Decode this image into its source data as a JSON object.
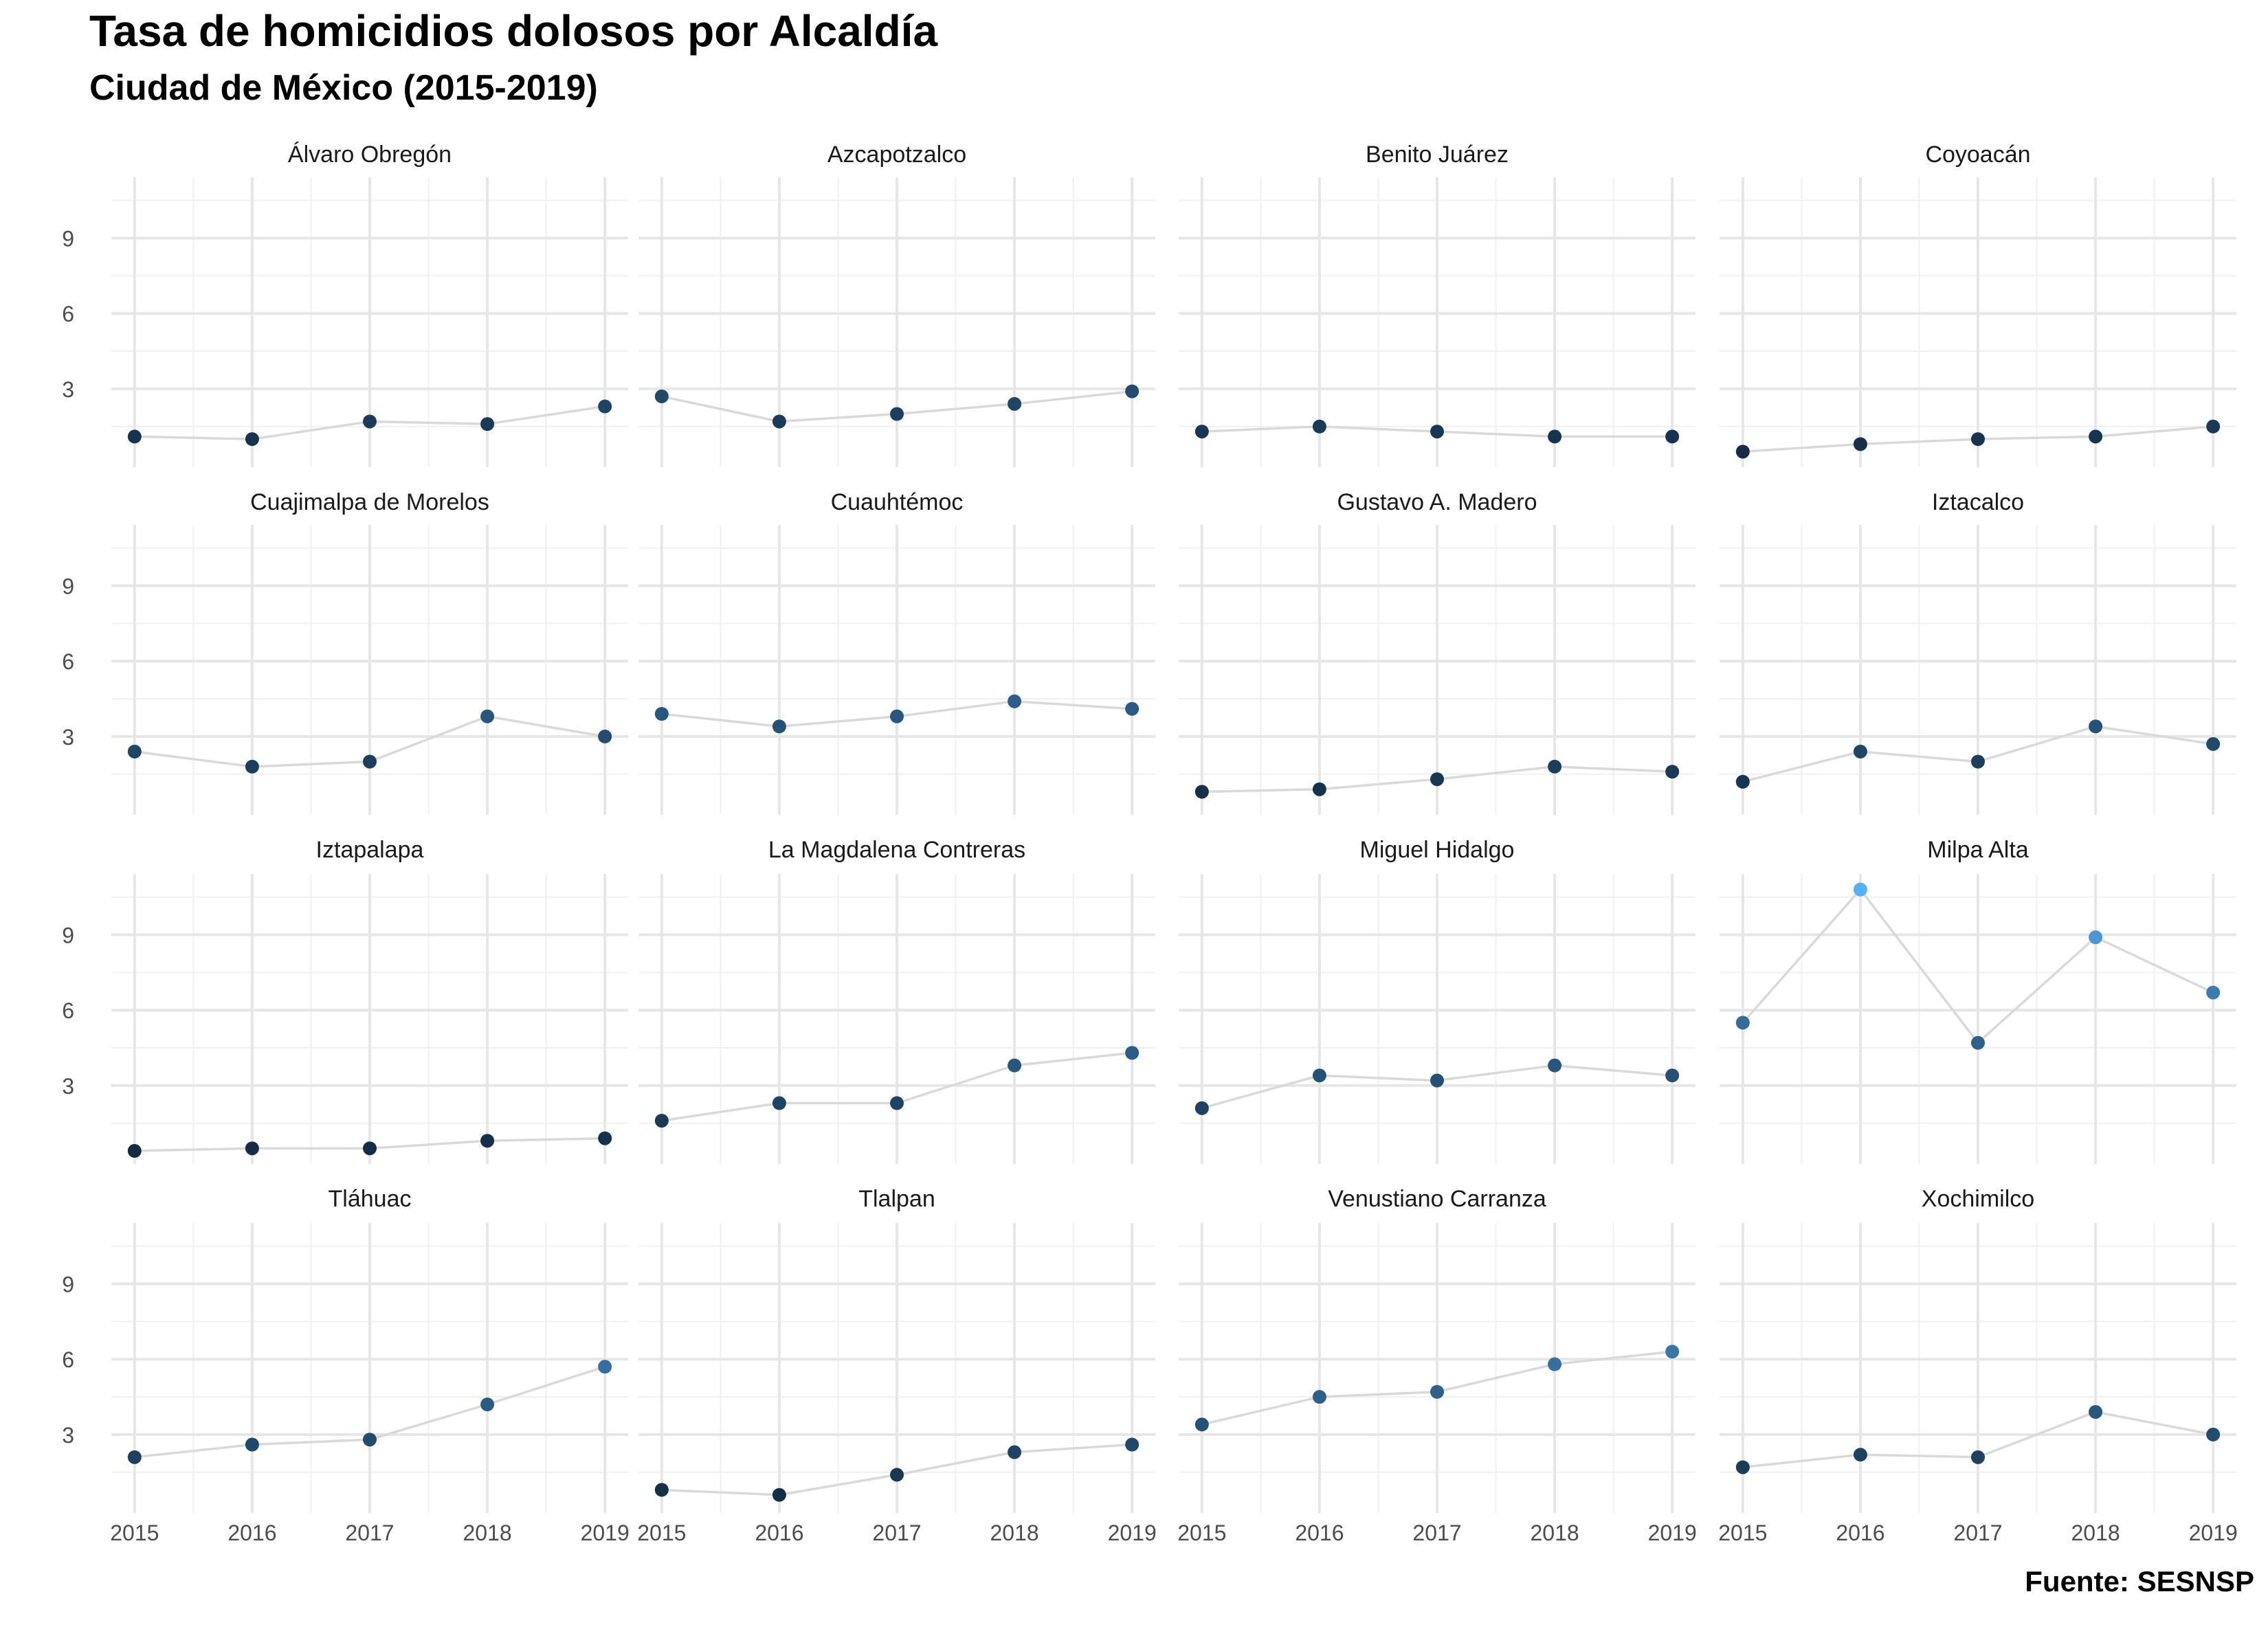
{
  "title": "Tasa de homicidios dolosos por Alcaldía",
  "subtitle": "Ciudad de México (2015-2019)",
  "caption": "Fuente: SESNSP",
  "colors": {
    "point_low": "#132B43",
    "point_high": "#56B1F7",
    "line": "#d9d9d9",
    "grid_major": "#e6e6e6",
    "grid_minor": "#f0f0f0",
    "strip_text": "#1a1a1a",
    "axis_text": "#4d4d4d"
  },
  "chart_data": {
    "type": "line",
    "layout": "facet-grid 4x4",
    "x_ticks": [
      "2015",
      "2016",
      "2017",
      "2018",
      "2019"
    ],
    "y_ticks": [
      "3",
      "6",
      "9"
    ],
    "xlim": [
      2015,
      2019
    ],
    "ylim": [
      0.4,
      10.9
    ],
    "grid": true,
    "legend": "none",
    "facets": [
      {
        "name": "Álvaro Obregón",
        "x": [
          2015,
          2016,
          2017,
          2018,
          2019
        ],
        "values": [
          1.1,
          1.0,
          1.7,
          1.6,
          2.3
        ]
      },
      {
        "name": "Azcapotzalco",
        "x": [
          2015,
          2016,
          2017,
          2018,
          2019
        ],
        "values": [
          2.7,
          1.7,
          2.0,
          2.4,
          2.9
        ]
      },
      {
        "name": "Benito Juárez",
        "x": [
          2015,
          2016,
          2017,
          2018,
          2019
        ],
        "values": [
          1.3,
          1.5,
          1.3,
          1.1,
          1.1
        ]
      },
      {
        "name": "Coyoacán",
        "x": [
          2015,
          2016,
          2017,
          2018,
          2019
        ],
        "values": [
          0.5,
          0.8,
          1.0,
          1.1,
          1.5
        ]
      },
      {
        "name": "Cuajimalpa de Morelos",
        "x": [
          2015,
          2016,
          2017,
          2018,
          2019
        ],
        "values": [
          2.4,
          1.8,
          2.0,
          3.8,
          3.0
        ]
      },
      {
        "name": "Cuauhtémoc",
        "x": [
          2015,
          2016,
          2017,
          2018,
          2019
        ],
        "values": [
          3.9,
          3.4,
          3.8,
          4.4,
          4.1
        ]
      },
      {
        "name": "Gustavo A. Madero",
        "x": [
          2015,
          2016,
          2017,
          2018,
          2019
        ],
        "values": [
          0.8,
          0.9,
          1.3,
          1.8,
          1.6
        ]
      },
      {
        "name": "Iztacalco",
        "x": [
          2015,
          2016,
          2017,
          2018,
          2019
        ],
        "values": [
          1.2,
          2.4,
          2.0,
          3.4,
          2.7
        ]
      },
      {
        "name": "Iztapalapa",
        "x": [
          2015,
          2016,
          2017,
          2018,
          2019
        ],
        "values": [
          0.4,
          0.5,
          0.5,
          0.8,
          0.9
        ]
      },
      {
        "name": "La Magdalena Contreras",
        "x": [
          2015,
          2016,
          2017,
          2018,
          2019
        ],
        "values": [
          1.6,
          2.3,
          2.3,
          3.8,
          4.3
        ]
      },
      {
        "name": "Miguel Hidalgo",
        "x": [
          2015,
          2016,
          2017,
          2018,
          2019
        ],
        "values": [
          2.1,
          3.4,
          3.2,
          3.8,
          3.4
        ]
      },
      {
        "name": "Milpa Alta",
        "x": [
          2015,
          2016,
          2017,
          2018,
          2019
        ],
        "values": [
          5.5,
          10.8,
          4.7,
          8.9,
          6.7
        ]
      },
      {
        "name": "Tláhuac",
        "x": [
          2015,
          2016,
          2017,
          2018,
          2019
        ],
        "values": [
          2.1,
          2.6,
          2.8,
          4.2,
          5.7
        ]
      },
      {
        "name": "Tlalpan",
        "x": [
          2015,
          2016,
          2017,
          2018,
          2019
        ],
        "values": [
          0.8,
          0.6,
          1.4,
          2.3,
          2.6
        ]
      },
      {
        "name": "Venustiano Carranza",
        "x": [
          2015,
          2016,
          2017,
          2018,
          2019
        ],
        "values": [
          3.4,
          4.5,
          4.7,
          5.8,
          6.3
        ]
      },
      {
        "name": "Xochimilco",
        "x": [
          2015,
          2016,
          2017,
          2018,
          2019
        ],
        "values": [
          1.7,
          2.2,
          2.1,
          3.9,
          3.0
        ]
      }
    ]
  }
}
